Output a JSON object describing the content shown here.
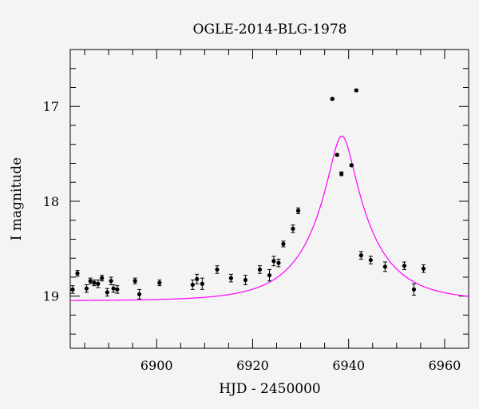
{
  "chart_data": {
    "type": "scatter",
    "title": "OGLE-2014-BLG-1978",
    "xlabel": "HJD - 2450000",
    "ylabel": "I magnitude",
    "xlim": [
      6882,
      6965
    ],
    "ylim": [
      19.55,
      16.4
    ],
    "y_inverted": true,
    "grid": false,
    "x_ticks": [
      6900,
      6920,
      6940,
      6960
    ],
    "x_tick_labels": [
      "6900",
      "6920",
      "6940",
      "6960"
    ],
    "y_ticks": [
      17,
      18,
      19
    ],
    "y_tick_labels": [
      "17",
      "18",
      "19"
    ],
    "colors": {
      "points": "#000000",
      "model": "#ff00ff",
      "background": "#f4f4f4"
    },
    "series": [
      {
        "type": "scatter",
        "x": [
          6882.5,
          6883.5,
          6885.4,
          6886.2,
          6887.0,
          6887.8,
          6888.6,
          6889.7,
          6890.5,
          6891.0,
          6891.8,
          6895.5,
          6896.4,
          6900.6,
          6907.5,
          6908.4,
          6909.5,
          6912.6,
          6915.5,
          6918.5,
          6921.5,
          6923.5,
          6924.4,
          6925.4,
          6926.4,
          6928.4,
          6929.5,
          6936.6,
          6937.6,
          6938.5,
          6940.6,
          6941.6,
          6942.6,
          6944.6,
          6947.6,
          6951.6,
          6953.6,
          6955.6
        ],
        "y": [
          18.93,
          18.76,
          18.92,
          18.84,
          18.86,
          18.87,
          18.81,
          18.96,
          18.84,
          18.92,
          18.93,
          18.84,
          18.98,
          18.86,
          18.88,
          18.82,
          18.87,
          18.72,
          18.81,
          18.83,
          18.72,
          18.78,
          18.63,
          18.65,
          18.45,
          18.29,
          18.1,
          16.92,
          17.51,
          17.71,
          17.62,
          16.83,
          18.57,
          18.62,
          18.69,
          18.68,
          18.93,
          18.71
        ],
        "yerr": [
          0.04,
          0.03,
          0.04,
          0.03,
          0.03,
          0.04,
          0.03,
          0.04,
          0.04,
          0.04,
          0.04,
          0.03,
          0.05,
          0.03,
          0.05,
          0.05,
          0.06,
          0.04,
          0.04,
          0.05,
          0.04,
          0.06,
          0.05,
          0.04,
          0.03,
          0.04,
          0.03,
          0.01,
          0.01,
          0.02,
          0.01,
          0.01,
          0.04,
          0.04,
          0.05,
          0.04,
          0.06,
          0.04
        ]
      },
      {
        "type": "line",
        "model": "paczynski",
        "t0": 6938.6,
        "tE": 12.0,
        "u0": 0.205,
        "baseline_mag": 19.05,
        "x_range": [
          6882,
          6965
        ]
      }
    ]
  }
}
